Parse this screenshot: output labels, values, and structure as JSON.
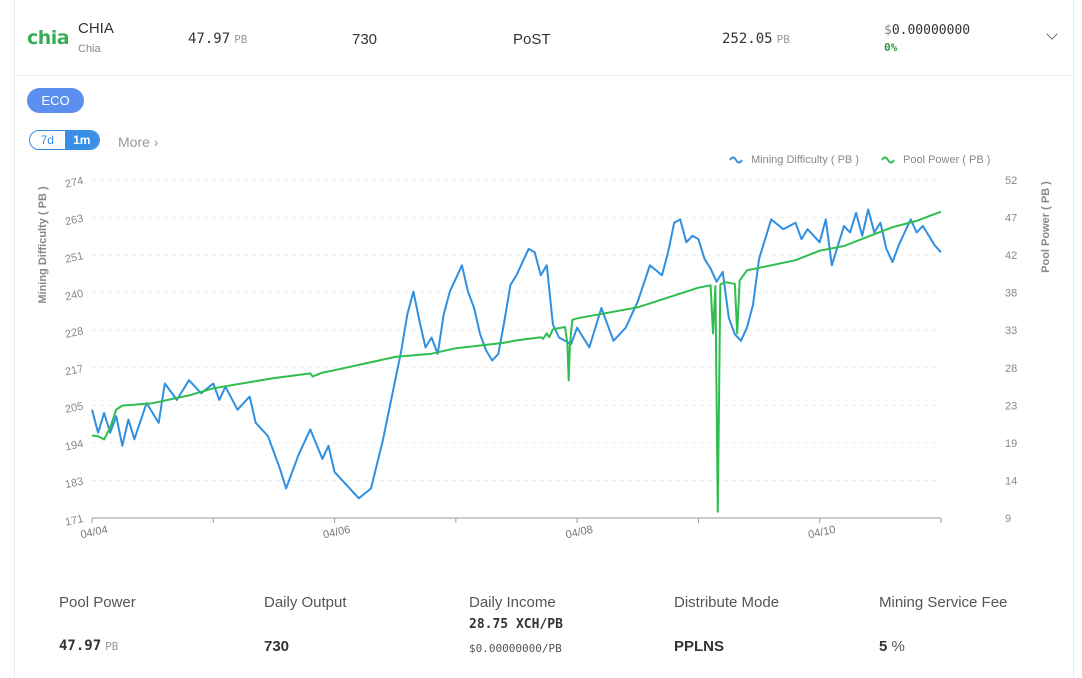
{
  "coin": {
    "logo_text": "chia",
    "name": "CHIA",
    "sub": "Chia",
    "pool_power": "47.97",
    "pool_power_unit": "PB",
    "daily_output": "730",
    "algorithm": "PoST",
    "network_power": "252.05",
    "network_power_unit": "PB",
    "price_currency": "$",
    "price": "0.00000000",
    "change": "0%"
  },
  "mode_button": "ECO",
  "range_tabs": [
    "7d",
    "1m"
  ],
  "more_label": "More",
  "more_icon": "chevron-right-icon",
  "expand_icon": "chevron-down-icon",
  "colors": {
    "difficulty": "#2f8fe0",
    "pool_power": "#2ebd4e",
    "accent": "#3a8ee6",
    "eco": "#5b8ff0"
  },
  "chart_data": {
    "type": "line",
    "legend_position": "top-right",
    "grid": true,
    "x_ticks": [
      "04/04",
      "04/06",
      "04/08",
      "04/10"
    ],
    "xlim": [
      "04/04",
      "04/11"
    ],
    "yleft": {
      "label": "Mining Difficulty ( PB )",
      "ticks": [
        "171",
        "183",
        "194",
        "205",
        "217",
        "228",
        "240",
        "251",
        "263",
        "274"
      ],
      "range": [
        171,
        274
      ]
    },
    "yright": {
      "label": "Pool Power ( PB )",
      "ticks": [
        "9",
        "14",
        "19",
        "23",
        "28",
        "33",
        "38",
        "42",
        "47",
        "52"
      ],
      "range": [
        9,
        52
      ]
    },
    "series": [
      {
        "name": "Mining Difficulty ( PB )",
        "axis": "left",
        "points": [
          [
            0.0,
            204
          ],
          [
            0.05,
            197
          ],
          [
            0.1,
            203
          ],
          [
            0.15,
            197
          ],
          [
            0.2,
            202
          ],
          [
            0.25,
            193
          ],
          [
            0.3,
            201
          ],
          [
            0.35,
            195
          ],
          [
            0.45,
            206
          ],
          [
            0.55,
            200
          ],
          [
            0.6,
            212
          ],
          [
            0.7,
            207
          ],
          [
            0.8,
            213
          ],
          [
            0.9,
            209
          ],
          [
            1.0,
            212
          ],
          [
            1.05,
            207
          ],
          [
            1.1,
            211
          ],
          [
            1.2,
            204
          ],
          [
            1.3,
            208
          ],
          [
            1.35,
            200
          ],
          [
            1.45,
            196
          ],
          [
            1.55,
            186
          ],
          [
            1.6,
            180
          ],
          [
            1.7,
            190
          ],
          [
            1.8,
            198
          ],
          [
            1.9,
            189
          ],
          [
            1.95,
            193
          ],
          [
            2.0,
            185
          ],
          [
            2.1,
            181
          ],
          [
            2.2,
            177
          ],
          [
            2.3,
            180
          ],
          [
            2.4,
            195
          ],
          [
            2.5,
            213
          ],
          [
            2.55,
            222
          ],
          [
            2.6,
            233
          ],
          [
            2.65,
            240
          ],
          [
            2.7,
            231
          ],
          [
            2.75,
            223
          ],
          [
            2.8,
            226
          ],
          [
            2.85,
            221
          ],
          [
            2.9,
            233
          ],
          [
            2.95,
            240
          ],
          [
            3.0,
            244
          ],
          [
            3.05,
            248
          ],
          [
            3.1,
            240
          ],
          [
            3.15,
            235
          ],
          [
            3.2,
            227
          ],
          [
            3.25,
            222
          ],
          [
            3.3,
            219
          ],
          [
            3.35,
            221
          ],
          [
            3.4,
            231
          ],
          [
            3.45,
            242
          ],
          [
            3.5,
            245
          ],
          [
            3.6,
            253
          ],
          [
            3.65,
            252
          ],
          [
            3.7,
            245
          ],
          [
            3.75,
            248
          ],
          [
            3.8,
            230
          ],
          [
            3.85,
            226
          ],
          [
            3.95,
            224
          ],
          [
            4.0,
            229
          ],
          [
            4.1,
            223
          ],
          [
            4.2,
            235
          ],
          [
            4.3,
            225
          ],
          [
            4.4,
            229
          ],
          [
            4.5,
            237
          ],
          [
            4.6,
            248
          ],
          [
            4.7,
            245
          ],
          [
            4.75,
            252
          ],
          [
            4.8,
            261
          ],
          [
            4.85,
            262
          ],
          [
            4.9,
            255
          ],
          [
            4.95,
            257
          ],
          [
            5.0,
            256
          ],
          [
            5.05,
            250
          ],
          [
            5.1,
            247
          ],
          [
            5.15,
            243
          ],
          [
            5.2,
            246
          ],
          [
            5.25,
            232
          ],
          [
            5.3,
            227
          ],
          [
            5.35,
            225
          ],
          [
            5.4,
            229
          ],
          [
            5.45,
            236
          ],
          [
            5.5,
            250
          ],
          [
            5.6,
            262
          ],
          [
            5.7,
            259
          ],
          [
            5.8,
            261
          ],
          [
            5.85,
            256
          ],
          [
            5.9,
            259
          ],
          [
            6.0,
            255
          ],
          [
            6.05,
            262
          ],
          [
            6.1,
            248
          ],
          [
            6.15,
            254
          ],
          [
            6.2,
            260
          ],
          [
            6.25,
            258
          ],
          [
            6.3,
            264
          ],
          [
            6.35,
            257
          ],
          [
            6.4,
            265
          ],
          [
            6.45,
            258
          ],
          [
            6.5,
            261
          ],
          [
            6.55,
            253
          ],
          [
            6.6,
            249
          ],
          [
            6.65,
            254
          ],
          [
            6.7,
            258
          ],
          [
            6.75,
            262
          ],
          [
            6.8,
            258
          ],
          [
            6.85,
            260
          ],
          [
            6.9,
            257
          ],
          [
            6.95,
            254
          ],
          [
            7.0,
            252
          ]
        ]
      },
      {
        "name": "Pool Power ( PB )",
        "axis": "right",
        "points": [
          [
            0.0,
            19.5
          ],
          [
            0.05,
            19.4
          ],
          [
            0.1,
            19.0
          ],
          [
            0.15,
            20.5
          ],
          [
            0.2,
            22.8
          ],
          [
            0.25,
            23.3
          ],
          [
            0.5,
            23.6
          ],
          [
            0.8,
            24.6
          ],
          [
            1.0,
            25.5
          ],
          [
            1.5,
            26.8
          ],
          [
            1.8,
            27.4
          ],
          [
            1.82,
            27.0
          ],
          [
            1.9,
            27.5
          ],
          [
            2.0,
            27.8
          ],
          [
            2.5,
            29.5
          ],
          [
            2.8,
            29.9
          ],
          [
            3.0,
            30.6
          ],
          [
            3.4,
            31.3
          ],
          [
            3.5,
            31.6
          ],
          [
            3.7,
            32.0
          ],
          [
            3.72,
            31.8
          ],
          [
            3.75,
            32.5
          ],
          [
            3.77,
            32.0
          ],
          [
            3.8,
            33.0
          ],
          [
            3.9,
            33.3
          ],
          [
            3.92,
            31.2
          ],
          [
            3.93,
            26.5
          ],
          [
            3.94,
            31.0
          ],
          [
            3.96,
            34.2
          ],
          [
            4.0,
            34.4
          ],
          [
            4.5,
            35.8
          ],
          [
            5.0,
            38.3
          ],
          [
            5.1,
            38.6
          ],
          [
            5.12,
            32.5
          ],
          [
            5.14,
            38.5
          ],
          [
            5.16,
            9.8
          ],
          [
            5.18,
            38.7
          ],
          [
            5.22,
            39.0
          ],
          [
            5.3,
            38.8
          ],
          [
            5.32,
            32.5
          ],
          [
            5.34,
            39.2
          ],
          [
            5.4,
            40.5
          ],
          [
            5.8,
            41.8
          ],
          [
            6.0,
            43.0
          ],
          [
            6.2,
            43.6
          ],
          [
            6.4,
            44.8
          ],
          [
            6.6,
            46.0
          ],
          [
            6.8,
            46.8
          ],
          [
            6.9,
            47.4
          ],
          [
            7.0,
            47.97
          ]
        ]
      }
    ]
  },
  "stats": {
    "pool_power_label": "Pool Power",
    "pool_power_value": "47.97",
    "pool_power_unit": "PB",
    "daily_output_label": "Daily Output",
    "daily_output_value": "730",
    "daily_income_label": "Daily Income",
    "daily_income_main": "28.75 XCH/PB",
    "daily_income_sub": "$0.00000000/PB",
    "distribute_label": "Distribute Mode",
    "distribute_value": "PPLNS",
    "fee_label": "Mining Service Fee",
    "fee_value": "5",
    "fee_unit": "%"
  }
}
